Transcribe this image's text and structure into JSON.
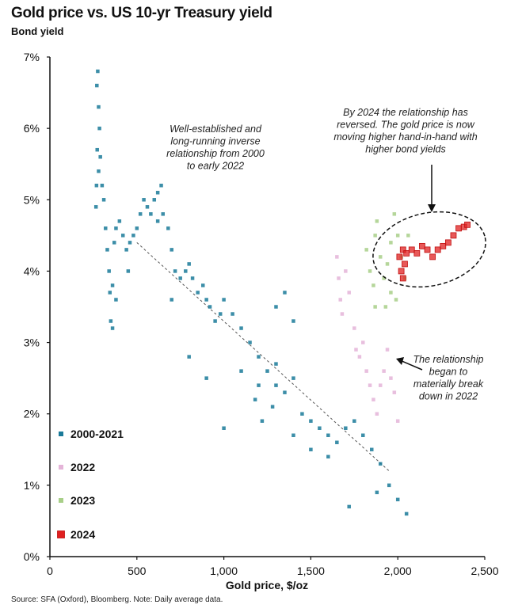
{
  "title": "Gold price vs. US 10-yr Treasury yield",
  "source": "Source: SFA (Oxford), Bloomberg. Note: Daily average data.",
  "chart_data": {
    "type": "scatter",
    "title": "Gold price vs. US 10-yr Treasury yield",
    "ylabel": "Bond yield",
    "xlabel": "Gold price, $/oz",
    "xlim": [
      0,
      2500
    ],
    "ylim": [
      0,
      7
    ],
    "x_ticks": [
      "0",
      "500",
      "1,000",
      "1,500",
      "2,000",
      "2,500"
    ],
    "y_ticks": [
      "0%",
      "1%",
      "2%",
      "3%",
      "4%",
      "5%",
      "6%",
      "7%"
    ],
    "legend_position": "left",
    "trend_line": {
      "from": [
        500,
        4.4
      ],
      "to": [
        1950,
        1.2
      ]
    },
    "annotations": [
      [
        "Well-established and",
        "long-running inverse",
        "relationship from 2000",
        "to early 2022"
      ],
      [
        "By 2024 the relationship has",
        "reversed. The gold price is now",
        "moving higher hand-in-hand with",
        "higher bond yields"
      ],
      [
        "The relationship",
        "began to",
        "materially break",
        "down in 2022"
      ]
    ],
    "series": [
      {
        "name": "2000-2021",
        "color": "#1a7a99",
        "points": [
          [
            270,
            6.6
          ],
          [
            275,
            6.8
          ],
          [
            280,
            6.3
          ],
          [
            285,
            6.0
          ],
          [
            272,
            5.7
          ],
          [
            268,
            5.2
          ],
          [
            265,
            4.9
          ],
          [
            280,
            5.4
          ],
          [
            290,
            5.6
          ],
          [
            300,
            5.2
          ],
          [
            310,
            5.0
          ],
          [
            320,
            4.6
          ],
          [
            330,
            4.3
          ],
          [
            340,
            4.0
          ],
          [
            345,
            3.7
          ],
          [
            350,
            3.3
          ],
          [
            360,
            3.8
          ],
          [
            370,
            4.4
          ],
          [
            380,
            4.6
          ],
          [
            400,
            4.7
          ],
          [
            420,
            4.5
          ],
          [
            440,
            4.3
          ],
          [
            460,
            4.4
          ],
          [
            480,
            4.5
          ],
          [
            500,
            4.6
          ],
          [
            520,
            4.8
          ],
          [
            540,
            5.0
          ],
          [
            560,
            4.9
          ],
          [
            580,
            4.8
          ],
          [
            600,
            5.0
          ],
          [
            620,
            5.1
          ],
          [
            640,
            5.2
          ],
          [
            650,
            4.8
          ],
          [
            620,
            4.7
          ],
          [
            680,
            4.6
          ],
          [
            700,
            4.3
          ],
          [
            720,
            4.0
          ],
          [
            750,
            3.9
          ],
          [
            780,
            4.0
          ],
          [
            800,
            4.1
          ],
          [
            820,
            3.9
          ],
          [
            850,
            3.7
          ],
          [
            880,
            3.8
          ],
          [
            900,
            3.6
          ],
          [
            920,
            3.5
          ],
          [
            950,
            3.3
          ],
          [
            980,
            3.4
          ],
          [
            1000,
            3.6
          ],
          [
            1050,
            3.4
          ],
          [
            1100,
            3.2
          ],
          [
            1150,
            3.0
          ],
          [
            1200,
            2.8
          ],
          [
            1250,
            2.6
          ],
          [
            1300,
            2.4
          ],
          [
            1350,
            2.3
          ],
          [
            1280,
            2.1
          ],
          [
            1220,
            1.9
          ],
          [
            1180,
            2.2
          ],
          [
            1300,
            2.7
          ],
          [
            1400,
            2.5
          ],
          [
            1450,
            2.0
          ],
          [
            1500,
            1.9
          ],
          [
            1550,
            1.8
          ],
          [
            1600,
            1.7
          ],
          [
            1650,
            1.6
          ],
          [
            1700,
            1.8
          ],
          [
            1750,
            1.9
          ],
          [
            1800,
            1.7
          ],
          [
            1850,
            1.5
          ],
          [
            1900,
            1.3
          ],
          [
            1950,
            1.0
          ],
          [
            2000,
            0.8
          ],
          [
            2050,
            0.6
          ],
          [
            1880,
            0.9
          ],
          [
            1720,
            0.7
          ],
          [
            1600,
            1.4
          ],
          [
            1500,
            1.5
          ],
          [
            1400,
            1.7
          ],
          [
            1300,
            3.5
          ],
          [
            1350,
            3.7
          ],
          [
            1400,
            3.3
          ],
          [
            1200,
            2.4
          ],
          [
            1100,
            2.6
          ],
          [
            900,
            2.5
          ],
          [
            800,
            2.8
          ],
          [
            700,
            3.6
          ],
          [
            450,
            4.0
          ],
          [
            380,
            3.6
          ],
          [
            360,
            3.2
          ],
          [
            1000,
            1.8
          ]
        ]
      },
      {
        "name": "2022",
        "color": "#e4b4d8",
        "points": [
          [
            1650,
            4.2
          ],
          [
            1660,
            3.9
          ],
          [
            1670,
            3.6
          ],
          [
            1680,
            3.4
          ],
          [
            1700,
            4.0
          ],
          [
            1720,
            3.7
          ],
          [
            1750,
            3.2
          ],
          [
            1760,
            2.9
          ],
          [
            1780,
            2.8
          ],
          [
            1800,
            3.0
          ],
          [
            1820,
            2.6
          ],
          [
            1840,
            2.4
          ],
          [
            1860,
            2.2
          ],
          [
            1880,
            2.0
          ],
          [
            1900,
            2.4
          ],
          [
            1920,
            2.6
          ],
          [
            1940,
            2.9
          ],
          [
            1960,
            2.5
          ],
          [
            1980,
            2.3
          ],
          [
            2000,
            1.9
          ]
        ]
      },
      {
        "name": "2023",
        "color": "#a8cf88",
        "points": [
          [
            1820,
            4.3
          ],
          [
            1840,
            4.0
          ],
          [
            1860,
            3.8
          ],
          [
            1870,
            4.5
          ],
          [
            1880,
            4.7
          ],
          [
            1900,
            4.2
          ],
          [
            1920,
            3.9
          ],
          [
            1940,
            4.1
          ],
          [
            1960,
            4.4
          ],
          [
            1980,
            4.8
          ],
          [
            2000,
            4.5
          ],
          [
            2020,
            4.2
          ],
          [
            2040,
            3.9
          ],
          [
            1960,
            3.7
          ],
          [
            1990,
            3.6
          ],
          [
            1930,
            3.5
          ],
          [
            1870,
            3.5
          ],
          [
            2060,
            4.5
          ]
        ]
      },
      {
        "name": "2024",
        "color": "#e02020",
        "points": [
          [
            2010,
            4.2
          ],
          [
            2020,
            4.0
          ],
          [
            2030,
            3.9
          ],
          [
            2040,
            4.1
          ],
          [
            2030,
            4.3
          ],
          [
            2050,
            4.25
          ],
          [
            2080,
            4.3
          ],
          [
            2110,
            4.25
          ],
          [
            2140,
            4.35
          ],
          [
            2170,
            4.3
          ],
          [
            2200,
            4.2
          ],
          [
            2230,
            4.3
          ],
          [
            2260,
            4.35
          ],
          [
            2290,
            4.4
          ],
          [
            2320,
            4.5
          ],
          [
            2350,
            4.6
          ],
          [
            2380,
            4.62
          ],
          [
            2400,
            4.65
          ]
        ]
      }
    ]
  }
}
